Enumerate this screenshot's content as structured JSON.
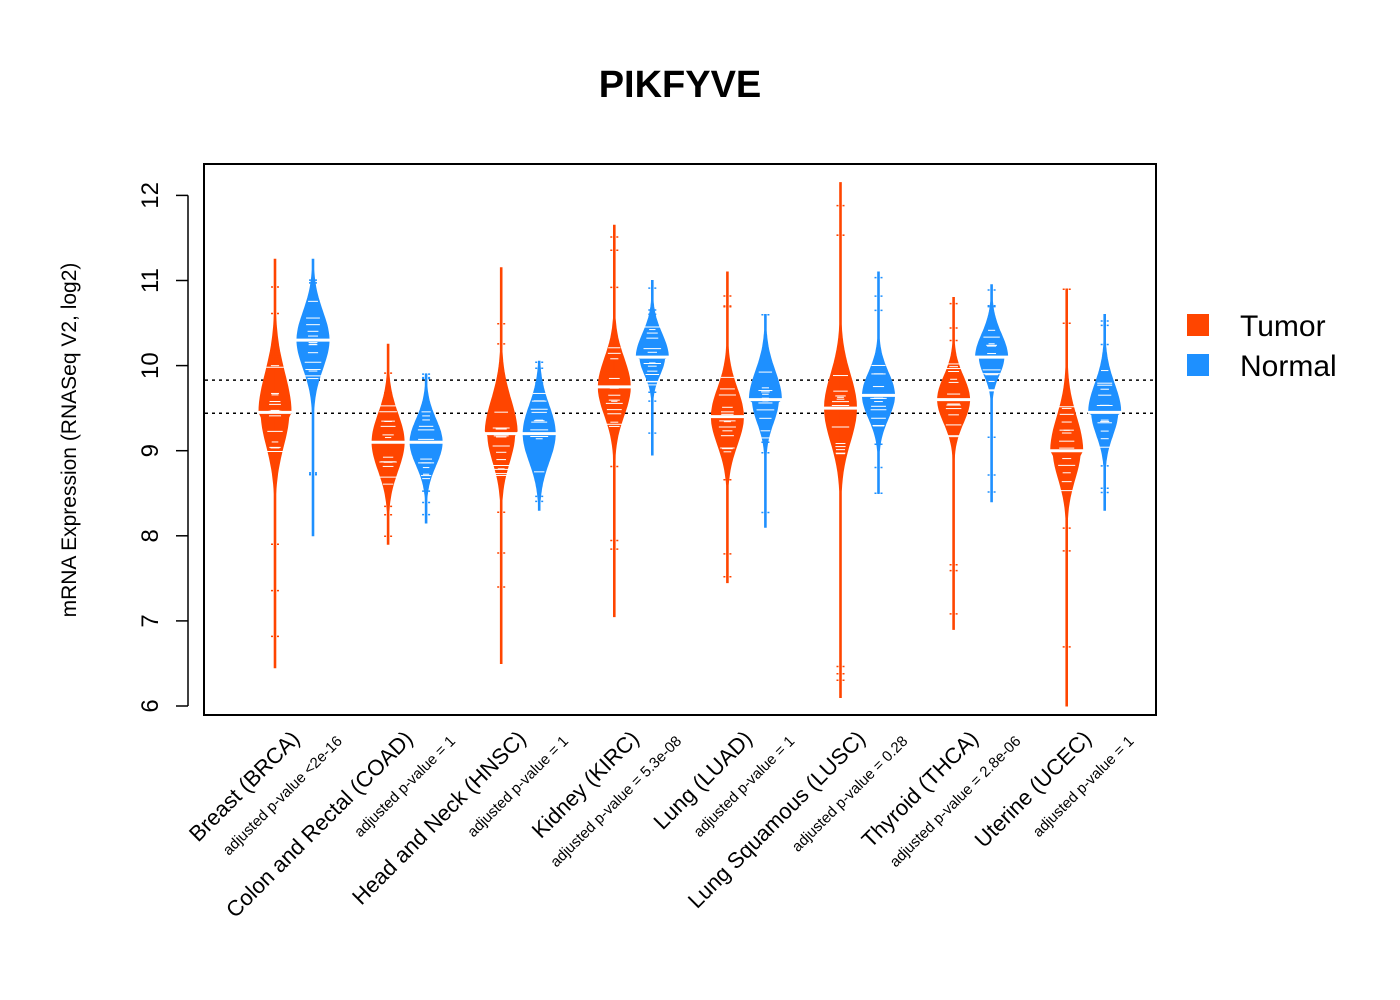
{
  "chart_data": {
    "type": "violin",
    "title": "PIKFYVE",
    "xlabel": "",
    "ylabel": "mRNA Expression (RNASeq V2, log2)",
    "ylim": [
      5.9,
      12.4
    ],
    "yticks": [
      6,
      7,
      8,
      9,
      10,
      11,
      12
    ],
    "ytick_labels": [
      "6",
      "7",
      "8",
      "9",
      "10",
      "11",
      "12"
    ],
    "reference_lines": [
      9.44,
      9.83
    ],
    "colors": {
      "Tumor": "#ff4500",
      "Normal": "#1e90ff"
    },
    "legend": {
      "position": "right",
      "entries": [
        "Tumor",
        "Normal"
      ]
    },
    "categories": [
      {
        "name": "Breast (BRCA)",
        "pvalue": "adjusted p-value <2e-16",
        "tumor": {
          "median": 9.45,
          "q1": 9.15,
          "q3": 9.8,
          "min": 6.45,
          "max": 11.25
        },
        "normal": {
          "median": 10.3,
          "q1": 10.05,
          "q3": 10.55,
          "min": 8.0,
          "max": 11.25
        }
      },
      {
        "name": "Colon and Rectal (COAD)",
        "pvalue": "adjusted p-value = 1",
        "tumor": {
          "median": 9.1,
          "q1": 8.85,
          "q3": 9.35,
          "min": 7.9,
          "max": 10.25
        },
        "normal": {
          "median": 9.1,
          "q1": 8.9,
          "q3": 9.3,
          "min": 8.15,
          "max": 9.9
        }
      },
      {
        "name": "Head and Neck (HNSC)",
        "pvalue": "adjusted p-value = 1",
        "tumor": {
          "median": 9.2,
          "q1": 8.95,
          "q3": 9.5,
          "min": 6.5,
          "max": 11.15
        },
        "normal": {
          "median": 9.2,
          "q1": 8.95,
          "q3": 9.45,
          "min": 8.3,
          "max": 10.05
        }
      },
      {
        "name": "Kidney (KIRC)",
        "pvalue": "adjusted p-value = 5.3e-08",
        "tumor": {
          "median": 9.75,
          "q1": 9.5,
          "q3": 10.0,
          "min": 7.05,
          "max": 11.65
        },
        "normal": {
          "median": 10.1,
          "q1": 9.95,
          "q3": 10.3,
          "min": 8.95,
          "max": 11.0
        }
      },
      {
        "name": "Lung (LUAD)",
        "pvalue": "adjusted p-value = 1",
        "tumor": {
          "median": 9.4,
          "q1": 9.15,
          "q3": 9.65,
          "min": 7.45,
          "max": 11.1
        },
        "normal": {
          "median": 9.6,
          "q1": 9.4,
          "q3": 9.85,
          "min": 8.1,
          "max": 10.6
        }
      },
      {
        "name": "Lung Squamous (LUSC)",
        "pvalue": "adjusted p-value = 0.28",
        "tumor": {
          "median": 9.5,
          "q1": 9.2,
          "q3": 9.8,
          "min": 6.1,
          "max": 12.15
        },
        "normal": {
          "median": 9.65,
          "q1": 9.45,
          "q3": 9.85,
          "min": 8.5,
          "max": 11.1
        }
      },
      {
        "name": "Thyroid (THCA)",
        "pvalue": "adjusted p-value = 2.8e-06",
        "tumor": {
          "median": 9.6,
          "q1": 9.4,
          "q3": 9.8,
          "min": 6.9,
          "max": 10.8
        },
        "normal": {
          "median": 10.1,
          "q1": 9.95,
          "q3": 10.3,
          "min": 8.4,
          "max": 10.95
        }
      },
      {
        "name": "Uterine (UCEC)",
        "pvalue": "adjusted p-value = 1",
        "tumor": {
          "median": 9.0,
          "q1": 8.75,
          "q3": 9.3,
          "min": 6.0,
          "max": 10.9
        },
        "normal": {
          "median": 9.45,
          "q1": 9.25,
          "q3": 9.7,
          "min": 8.3,
          "max": 10.6
        }
      }
    ]
  }
}
